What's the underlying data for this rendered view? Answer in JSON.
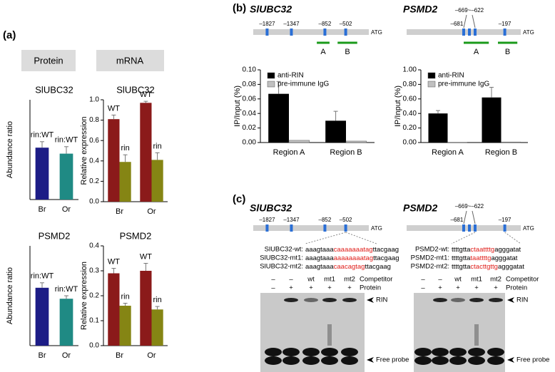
{
  "panel_labels": [
    "(a)",
    "(b)",
    "(c)"
  ],
  "section_headers": [
    "Protein",
    "mRNA"
  ],
  "chart_data": [
    {
      "type": "bar",
      "title": "SlUBC32",
      "y_label": "Abundance ratio",
      "categories": [
        "Br",
        "Or"
      ],
      "values": [
        0.52,
        0.46
      ],
      "errors": [
        0.06,
        0.07
      ],
      "colors": [
        "#1c1c86",
        "#1f8a84"
      ],
      "bar_labels": [
        "rin:WT",
        "rin:WT"
      ],
      "ylim": [
        0,
        1
      ]
    },
    {
      "type": "bar",
      "title": "SlUBC32",
      "y_label": "Relative expression",
      "categories": [
        "Br",
        "Or"
      ],
      "series": [
        {
          "color": "#8b1a1a",
          "values": [
            0.81,
            0.97
          ],
          "errors": [
            0.04,
            0.015
          ],
          "bar_labels": [
            "WT",
            "WT"
          ]
        },
        {
          "color": "#858514",
          "values": [
            0.39,
            0.41
          ],
          "errors": [
            0.07,
            0.07
          ],
          "bar_labels": [
            "rin",
            "rin"
          ]
        }
      ],
      "ylim": [
        0,
        1
      ],
      "yticks": [
        {
          "value": 0,
          "label": "0.0"
        },
        0.2,
        0.4,
        0.6,
        0.8,
        {
          "value": 1,
          "label": "1.0"
        }
      ]
    },
    {
      "type": "bar",
      "title": "PSMD2",
      "y_label": "Abundance ratio",
      "categories": [
        "Br",
        "Or"
      ],
      "values": [
        0.58,
        0.47
      ],
      "errors": [
        0.05,
        0.03
      ],
      "colors": [
        "#1c1c86",
        "#1f8a84"
      ],
      "bar_labels": [
        "rin:WT",
        "rin:WT"
      ],
      "ylim": [
        0,
        1
      ]
    },
    {
      "type": "bar",
      "title": "PSMD2",
      "y_label": "Relative expression",
      "categories": [
        "Br",
        "Or"
      ],
      "series": [
        {
          "color": "#8b1a1a",
          "values": [
            0.29,
            0.3
          ],
          "errors": [
            0.02,
            0.03
          ],
          "bar_labels": [
            "WT",
            "WT"
          ]
        },
        {
          "color": "#858514",
          "values": [
            0.16,
            0.145
          ],
          "errors": [
            0.01,
            0.012
          ],
          "bar_labels": [
            "rin",
            "rin"
          ]
        }
      ],
      "ylim": [
        0,
        0.4
      ],
      "yticks": [
        {
          "value": 0,
          "label": "0.0"
        },
        0.1,
        0.2,
        0.3,
        0.4
      ]
    },
    {
      "type": "bar",
      "y_label": "IP/Input (%)",
      "categories": [
        "Region A",
        "Region B"
      ],
      "legend": "upper left",
      "series": [
        {
          "name": "anti-RIN",
          "color": "#000000",
          "values": [
            0.067,
            0.03
          ],
          "errors": [
            0.017,
            0.013
          ]
        },
        {
          "name": "pre-immune IgG",
          "color": "#c0c0c0",
          "values": [
            0.003,
            0.002
          ]
        }
      ],
      "ylim": [
        0,
        0.1
      ],
      "yticks": [
        {
          "value": 0,
          "label": "0.00"
        },
        {
          "value": 0.02,
          "label": "0.02"
        },
        {
          "value": 0.04,
          "label": "0.04"
        },
        {
          "value": 0.06,
          "label": "0.06"
        },
        {
          "value": 0.08,
          "label": "0.08"
        },
        {
          "value": 0.1,
          "label": "0.10"
        }
      ]
    },
    {
      "type": "bar",
      "y_label": "IP/Input (%)",
      "categories": [
        "Region A",
        "Region B"
      ],
      "legend": "upper left",
      "series": [
        {
          "name": "anti-RIN",
          "color": "#000000",
          "values": [
            0.4,
            0.62
          ],
          "errors": [
            0.04,
            0.14
          ]
        },
        {
          "name": "pre-immune IgG",
          "color": "#c0c0c0",
          "values": [
            0.003,
            0.008
          ]
        }
      ],
      "ylim": [
        0,
        1
      ],
      "yticks": [
        {
          "value": 0,
          "label": "0.00"
        },
        {
          "value": 0.2,
          "label": "0.20"
        },
        {
          "value": 0.4,
          "label": "0.40"
        },
        {
          "value": 0.6,
          "label": "0.60"
        },
        {
          "value": 0.8,
          "label": "0.80"
        },
        {
          "value": 1,
          "label": "1.00"
        }
      ]
    }
  ],
  "promoter_maps": [
    {
      "gene": "SlUBC32",
      "sites": [
        "–1827",
        "–1347",
        "–852",
        "–502"
      ],
      "end": "ATG",
      "regions": [
        "A",
        "B"
      ]
    },
    {
      "gene": "PSMD2",
      "sites": [
        "–681",
        "–197"
      ],
      "upper_label": "–669~–622",
      "end": "ATG",
      "regions": [
        "A",
        "B"
      ]
    },
    {
      "gene": "SlUBC32",
      "sites": [
        "–1827",
        "–1347",
        "–852",
        "–502"
      ],
      "end": "ATG"
    },
    {
      "gene": "PSMD2",
      "sites": [
        "–681",
        "–197"
      ],
      "upper_label": "–669~–622",
      "end": "ATG"
    }
  ],
  "probes": [
    {
      "rows": [
        {
          "name": "SlUBC32-wt:",
          "parts": [
            "aaagtaaa",
            "caaaaaaatag",
            "ttacgaag"
          ]
        },
        {
          "name": "SlUBC32-mt1:",
          "parts": [
            "aaagtaaa",
            "aaaaaaaatag",
            "ttacgaag"
          ]
        },
        {
          "name": "SlUBC32-mt2:",
          "parts": [
            "aaagtaaa",
            "caacagtag",
            "ttacgaag"
          ]
        }
      ]
    },
    {
      "rows": [
        {
          "name": "PSMD2-wt:",
          "parts": [
            "ttttgtta",
            "ctaattttg",
            "agggatat"
          ]
        },
        {
          "name": "PSMD2-mt1:",
          "parts": [
            "ttttgtta",
            "taattttg",
            "agggatat"
          ]
        },
        {
          "name": "PSMD2-mt2:",
          "parts": [
            "ttttgtta",
            "ctacttgttg",
            "agggatat"
          ]
        }
      ]
    }
  ],
  "gels": [
    {
      "competitor_label": "Competitor",
      "protein_label": "Protein",
      "competitor": [
        "–",
        "–",
        "wt",
        "mt1",
        "mt2"
      ],
      "protein": [
        "–",
        "+",
        "+",
        "+",
        "+"
      ],
      "band_labels": [
        "RIN",
        "Free probe"
      ]
    },
    {
      "competitor_label": "Competitor",
      "protein_label": "Protein",
      "competitor": [
        "–",
        "–",
        "wt",
        "mt1",
        "mt2"
      ],
      "protein": [
        "–",
        "+",
        "+",
        "+",
        "+"
      ],
      "band_labels": [
        "RIN",
        "Free probe"
      ]
    }
  ]
}
